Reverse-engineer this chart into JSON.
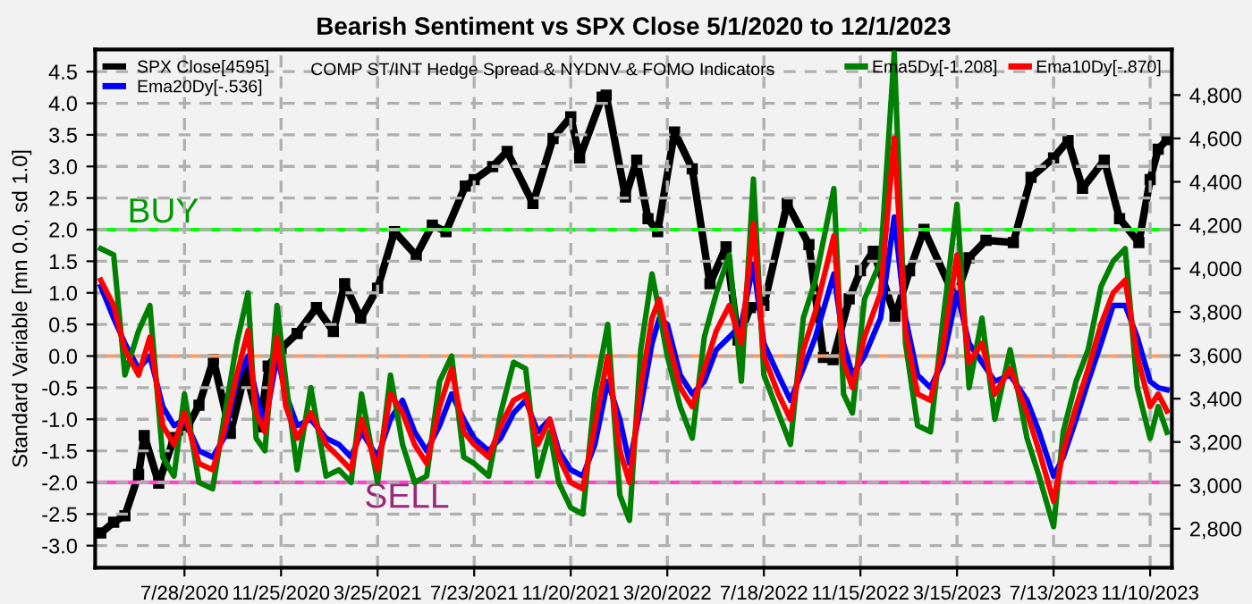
{
  "chart_data": {
    "type": "line",
    "title": "Bearish Sentiment vs SPX Close 5/1/2020 to 12/1/2023",
    "ylabel": "Standard Variable [mn 0.0, sd 1.0]",
    "annotations": [
      "COMP ST/INT Hedge Spread & NYDNV & FOMO Indicators"
    ],
    "xlim": [
      "2020-04-08",
      "2023-12-07"
    ],
    "xticks": [
      {
        "value": "2020-07-28",
        "label": "7/28/2020"
      },
      {
        "value": "2020-11-25",
        "label": "11/25/2020"
      },
      {
        "value": "2021-03-25",
        "label": "3/25/2021"
      },
      {
        "value": "2021-07-23",
        "label": "7/23/2021"
      },
      {
        "value": "2021-11-20",
        "label": "11/20/2021"
      },
      {
        "value": "2022-03-20",
        "label": "3/20/2022"
      },
      {
        "value": "2022-07-18",
        "label": "7/18/2022"
      },
      {
        "value": "2022-11-15",
        "label": "11/15/2022"
      },
      {
        "value": "2023-03-15",
        "label": "3/15/2023"
      },
      {
        "value": "2023-07-13",
        "label": "7/13/2023"
      },
      {
        "value": "2023-11-10",
        "label": "11/10/2023"
      }
    ],
    "ylim": [
      -3.35,
      4.85
    ],
    "yticks": [
      {
        "value": 4.5,
        "label": "4.5"
      },
      {
        "value": 4,
        "label": "4.0"
      },
      {
        "value": 3.5,
        "label": "3.5"
      },
      {
        "value": 3,
        "label": "3.0"
      },
      {
        "value": 2.5,
        "label": "2.5"
      },
      {
        "value": 2,
        "label": "2.0"
      },
      {
        "value": 1.5,
        "label": "1.5"
      },
      {
        "value": 1,
        "label": "1.0"
      },
      {
        "value": 0.5,
        "label": "0.5"
      },
      {
        "value": 0,
        "label": "0.0"
      },
      {
        "value": -0.5,
        "label": "-0.5"
      },
      {
        "value": -1,
        "label": "-1.0"
      },
      {
        "value": -1.5,
        "label": "-1.5"
      },
      {
        "value": -2,
        "label": "-2.0"
      },
      {
        "value": -2.5,
        "label": "-2.5"
      },
      {
        "value": -3,
        "label": "-3.0"
      }
    ],
    "y2lim": [
      2620,
      5010
    ],
    "y2ticks": [
      {
        "value": 2800,
        "label": "2,800"
      },
      {
        "value": 3000,
        "label": "3,000"
      },
      {
        "value": 3200,
        "label": "3,200"
      },
      {
        "value": 3400,
        "label": "3,400"
      },
      {
        "value": 3600,
        "label": "3,600"
      },
      {
        "value": 3800,
        "label": "3,800"
      },
      {
        "value": 4000,
        "label": "4,000"
      },
      {
        "value": 4200,
        "label": "4,200"
      },
      {
        "value": 4400,
        "label": "4,400"
      },
      {
        "value": 4600,
        "label": "4,600"
      },
      {
        "value": 4800,
        "label": "4,800"
      }
    ],
    "grid": true,
    "legend": "top",
    "ref_lines": [
      {
        "axis": "y",
        "value": 2,
        "label": "BUY",
        "color": "#00ff00"
      },
      {
        "axis": "y",
        "value": 0,
        "label": null,
        "color": "#ff9966"
      },
      {
        "axis": "y",
        "value": -2,
        "label": "SELL",
        "color": "#ff44cc"
      }
    ],
    "series": [
      {
        "name": "SPX Close[4595]",
        "color": "#000000",
        "axis": "y2",
        "marker": "square",
        "x": [
          "2020-04-15",
          "2020-05-01",
          "2020-05-15",
          "2020-06-01",
          "2020-06-08",
          "2020-06-26",
          "2020-07-15",
          "2020-08-01",
          "2020-08-15",
          "2020-09-02",
          "2020-09-23",
          "2020-10-12",
          "2020-10-30",
          "2020-11-09",
          "2020-11-25",
          "2020-12-15",
          "2021-01-08",
          "2021-01-29",
          "2021-02-12",
          "2021-03-04",
          "2021-03-25",
          "2021-04-15",
          "2021-05-12",
          "2021-06-01",
          "2021-06-18",
          "2021-07-12",
          "2021-07-23",
          "2021-08-15",
          "2021-09-02",
          "2021-10-04",
          "2021-10-29",
          "2021-11-20",
          "2021-12-01",
          "2021-12-29",
          "2022-01-03",
          "2022-01-27",
          "2022-02-10",
          "2022-02-24",
          "2022-03-08",
          "2022-03-29",
          "2022-04-20",
          "2022-05-12",
          "2022-06-01",
          "2022-06-16",
          "2022-07-01",
          "2022-07-18",
          "2022-08-16",
          "2022-09-12",
          "2022-09-30",
          "2022-10-12",
          "2022-11-01",
          "2022-11-15",
          "2022-12-01",
          "2022-12-28",
          "2023-01-15",
          "2023-02-02",
          "2023-03-13",
          "2023-03-30",
          "2023-04-20",
          "2023-05-24",
          "2023-06-15",
          "2023-07-13",
          "2023-07-31",
          "2023-08-18",
          "2023-09-14",
          "2023-10-03",
          "2023-10-27",
          "2023-11-10",
          "2023-11-20",
          "2023-12-01"
        ],
        "values": [
          2780,
          2830,
          2860,
          3050,
          3230,
          3010,
          3220,
          3270,
          3370,
          3580,
          3240,
          3530,
          3270,
          3550,
          3630,
          3700,
          3820,
          3710,
          3930,
          3770,
          3910,
          4170,
          4060,
          4200,
          4170,
          4380,
          4410,
          4470,
          4540,
          4300,
          4600,
          4700,
          4510,
          4790,
          4800,
          4330,
          4500,
          4230,
          4170,
          4630,
          4460,
          3930,
          4100,
          3670,
          3820,
          3830,
          4300,
          4110,
          3590,
          3580,
          3860,
          3990,
          4080,
          3780,
          3990,
          4180,
          3860,
          4050,
          4130,
          4120,
          4420,
          4510,
          4590,
          4370,
          4500,
          4230,
          4120,
          4410,
          4550,
          4595
        ]
      },
      {
        "name": "Ema20Dy[-.536]",
        "color": "#0000ff",
        "marker": "none",
        "x": [
          "2020-04-15",
          "2020-05-01",
          "2020-05-15",
          "2020-06-01",
          "2020-06-15",
          "2020-07-01",
          "2020-07-15",
          "2020-07-28",
          "2020-08-15",
          "2020-09-01",
          "2020-09-15",
          "2020-10-01",
          "2020-10-15",
          "2020-10-25",
          "2020-11-05",
          "2020-11-20",
          "2020-12-01",
          "2020-12-15",
          "2021-01-01",
          "2021-01-20",
          "2021-02-05",
          "2021-02-20",
          "2021-03-05",
          "2021-03-25",
          "2021-04-10",
          "2021-04-25",
          "2021-05-10",
          "2021-05-25",
          "2021-06-10",
          "2021-06-25",
          "2021-07-10",
          "2021-07-23",
          "2021-08-10",
          "2021-08-25",
          "2021-09-10",
          "2021-09-25",
          "2021-10-10",
          "2021-10-25",
          "2021-11-05",
          "2021-11-20",
          "2021-12-05",
          "2021-12-20",
          "2022-01-05",
          "2022-01-20",
          "2022-02-01",
          "2022-02-15",
          "2022-03-01",
          "2022-03-10",
          "2022-03-20",
          "2022-04-05",
          "2022-04-20",
          "2022-05-05",
          "2022-05-20",
          "2022-06-05",
          "2022-06-20",
          "2022-07-05",
          "2022-07-18",
          "2022-08-05",
          "2022-08-20",
          "2022-09-05",
          "2022-09-20",
          "2022-10-13",
          "2022-10-25",
          "2022-11-05",
          "2022-11-20",
          "2022-12-10",
          "2022-12-27",
          "2023-01-10",
          "2023-01-25",
          "2023-02-10",
          "2023-02-25",
          "2023-03-15",
          "2023-03-30",
          "2023-04-15",
          "2023-05-01",
          "2023-05-20",
          "2023-06-10",
          "2023-06-25",
          "2023-07-13",
          "2023-07-25",
          "2023-08-10",
          "2023-08-25",
          "2023-09-10",
          "2023-09-25",
          "2023-10-10",
          "2023-10-25",
          "2023-11-10",
          "2023-11-20",
          "2023-12-01"
        ],
        "values": [
          1.1,
          0.6,
          0.2,
          -0.2,
          0.0,
          -0.8,
          -1.1,
          -1.0,
          -1.5,
          -1.6,
          -1.3,
          -0.4,
          0.0,
          -0.6,
          -1.1,
          0.0,
          -0.6,
          -1.1,
          -1.0,
          -1.3,
          -1.4,
          -1.6,
          -1.2,
          -1.6,
          -1.0,
          -0.7,
          -1.2,
          -1.5,
          -1.1,
          -0.6,
          -1.0,
          -1.3,
          -1.5,
          -1.3,
          -0.9,
          -0.7,
          -1.2,
          -1.0,
          -1.5,
          -1.8,
          -1.9,
          -1.4,
          -0.4,
          -1.0,
          -1.7,
          -0.8,
          0.2,
          0.6,
          0.5,
          -0.3,
          -0.6,
          -0.4,
          0.1,
          0.3,
          0.5,
          1.45,
          0.2,
          -0.3,
          -0.7,
          -0.2,
          0.3,
          1.3,
          0.2,
          -0.3,
          0.0,
          0.6,
          2.2,
          0.6,
          -0.3,
          -0.5,
          -0.1,
          1.0,
          0.2,
          -0.1,
          -0.4,
          -0.3,
          -0.7,
          -1.2,
          -1.9,
          -1.6,
          -1.0,
          -0.4,
          0.2,
          0.8,
          0.8,
          0.3,
          -0.4,
          -0.5,
          -0.536
        ]
      },
      {
        "name": "Ema5Dy[-1.208]",
        "color": "#008000",
        "marker": "none",
        "x": [
          "2020-04-15",
          "2020-05-01",
          "2020-05-15",
          "2020-06-01",
          "2020-06-15",
          "2020-07-01",
          "2020-07-15",
          "2020-07-28",
          "2020-08-15",
          "2020-09-01",
          "2020-09-15",
          "2020-10-01",
          "2020-10-15",
          "2020-10-25",
          "2020-11-05",
          "2020-11-20",
          "2020-12-01",
          "2020-12-15",
          "2021-01-01",
          "2021-01-20",
          "2021-02-05",
          "2021-02-20",
          "2021-03-05",
          "2021-03-25",
          "2021-04-10",
          "2021-04-25",
          "2021-05-10",
          "2021-05-25",
          "2021-06-10",
          "2021-06-25",
          "2021-07-10",
          "2021-07-23",
          "2021-08-10",
          "2021-08-25",
          "2021-09-10",
          "2021-09-25",
          "2021-10-10",
          "2021-10-25",
          "2021-11-05",
          "2021-11-20",
          "2021-12-05",
          "2021-12-20",
          "2022-01-05",
          "2022-01-20",
          "2022-02-01",
          "2022-02-15",
          "2022-03-01",
          "2022-03-10",
          "2022-03-20",
          "2022-04-05",
          "2022-04-20",
          "2022-05-05",
          "2022-05-20",
          "2022-06-05",
          "2022-06-20",
          "2022-07-05",
          "2022-07-18",
          "2022-08-05",
          "2022-08-20",
          "2022-09-05",
          "2022-09-20",
          "2022-10-13",
          "2022-10-25",
          "2022-11-05",
          "2022-11-20",
          "2022-12-10",
          "2022-12-27",
          "2023-01-10",
          "2023-01-25",
          "2023-02-10",
          "2023-02-25",
          "2023-03-15",
          "2023-03-30",
          "2023-04-15",
          "2023-05-01",
          "2023-05-20",
          "2023-06-10",
          "2023-06-25",
          "2023-07-13",
          "2023-07-25",
          "2023-08-10",
          "2023-08-25",
          "2023-09-10",
          "2023-09-25",
          "2023-10-10",
          "2023-10-25",
          "2023-11-10",
          "2023-11-20",
          "2023-12-01"
        ],
        "values": [
          1.7,
          1.6,
          -0.3,
          0.4,
          0.8,
          -1.6,
          -1.9,
          -0.6,
          -2.0,
          -2.1,
          -1.0,
          0.2,
          1.0,
          -1.3,
          -1.5,
          0.8,
          -0.4,
          -1.8,
          -0.5,
          -1.9,
          -1.8,
          -2.0,
          -0.6,
          -2.0,
          -0.3,
          -1.4,
          -2.0,
          -1.9,
          -0.4,
          0.0,
          -1.6,
          -1.7,
          -1.9,
          -0.9,
          -0.1,
          -0.2,
          -1.9,
          -1.2,
          -2.0,
          -2.4,
          -2.5,
          -0.6,
          0.5,
          -2.2,
          -2.6,
          0.1,
          1.3,
          0.7,
          0.0,
          -0.8,
          -1.3,
          0.3,
          1.0,
          1.6,
          -0.4,
          2.8,
          -0.3,
          -0.9,
          -1.4,
          0.6,
          1.2,
          2.65,
          -0.6,
          -0.9,
          0.9,
          1.5,
          4.8,
          0.2,
          -1.1,
          -1.2,
          0.5,
          2.4,
          -0.5,
          0.6,
          -1.0,
          0.1,
          -1.3,
          -1.9,
          -2.7,
          -1.2,
          -0.4,
          0.1,
          1.1,
          1.5,
          1.7,
          -0.5,
          -1.3,
          -0.8,
          -1.208
        ]
      },
      {
        "name": "Ema10Dy[-.870]",
        "color": "#ff0000",
        "marker": "none",
        "x": [
          "2020-04-15",
          "2020-05-01",
          "2020-05-15",
          "2020-06-01",
          "2020-06-15",
          "2020-07-01",
          "2020-07-15",
          "2020-07-28",
          "2020-08-15",
          "2020-09-01",
          "2020-09-15",
          "2020-10-01",
          "2020-10-15",
          "2020-10-25",
          "2020-11-05",
          "2020-11-20",
          "2020-12-01",
          "2020-12-15",
          "2021-01-01",
          "2021-01-20",
          "2021-02-05",
          "2021-02-20",
          "2021-03-05",
          "2021-03-25",
          "2021-04-10",
          "2021-04-25",
          "2021-05-10",
          "2021-05-25",
          "2021-06-10",
          "2021-06-25",
          "2021-07-10",
          "2021-07-23",
          "2021-08-10",
          "2021-08-25",
          "2021-09-10",
          "2021-09-25",
          "2021-10-10",
          "2021-10-25",
          "2021-11-05",
          "2021-11-20",
          "2021-12-05",
          "2021-12-20",
          "2022-01-05",
          "2022-01-20",
          "2022-02-01",
          "2022-02-15",
          "2022-03-01",
          "2022-03-10",
          "2022-03-20",
          "2022-04-05",
          "2022-04-20",
          "2022-05-05",
          "2022-05-20",
          "2022-06-05",
          "2022-06-20",
          "2022-07-05",
          "2022-07-18",
          "2022-08-05",
          "2022-08-20",
          "2022-09-05",
          "2022-09-20",
          "2022-10-13",
          "2022-10-25",
          "2022-11-05",
          "2022-11-20",
          "2022-12-10",
          "2022-12-27",
          "2023-01-10",
          "2023-01-25",
          "2023-02-10",
          "2023-02-25",
          "2023-03-15",
          "2023-03-30",
          "2023-04-15",
          "2023-05-01",
          "2023-05-20",
          "2023-06-10",
          "2023-06-25",
          "2023-07-13",
          "2023-07-25",
          "2023-08-10",
          "2023-08-25",
          "2023-09-10",
          "2023-09-25",
          "2023-10-10",
          "2023-10-25",
          "2023-11-10",
          "2023-11-20",
          "2023-12-01"
        ],
        "values": [
          1.2,
          0.8,
          0.1,
          -0.3,
          0.3,
          -1.1,
          -1.4,
          -0.9,
          -1.7,
          -1.8,
          -1.2,
          -0.3,
          0.4,
          -0.9,
          -1.2,
          0.3,
          -0.8,
          -1.3,
          -0.9,
          -1.4,
          -1.6,
          -1.8,
          -1.0,
          -1.8,
          -0.6,
          -0.9,
          -1.4,
          -1.7,
          -0.8,
          -0.2,
          -1.2,
          -1.4,
          -1.6,
          -1.1,
          -0.7,
          -0.6,
          -1.4,
          -1.0,
          -1.6,
          -2.0,
          -2.1,
          -1.1,
          0.0,
          -1.5,
          -2.0,
          -0.5,
          0.6,
          0.9,
          0.3,
          -0.5,
          -0.8,
          -0.2,
          0.4,
          0.8,
          0.2,
          2.1,
          0.0,
          -0.6,
          -1.0,
          0.1,
          0.7,
          1.9,
          -0.1,
          -0.5,
          0.3,
          1.0,
          3.45,
          0.4,
          -0.6,
          -0.7,
          0.1,
          1.6,
          -0.1,
          0.2,
          -0.6,
          -0.2,
          -0.9,
          -1.5,
          -2.3,
          -1.5,
          -0.8,
          -0.2,
          0.5,
          1.0,
          1.2,
          0.0,
          -0.8,
          -0.6,
          -0.87
        ]
      }
    ]
  }
}
